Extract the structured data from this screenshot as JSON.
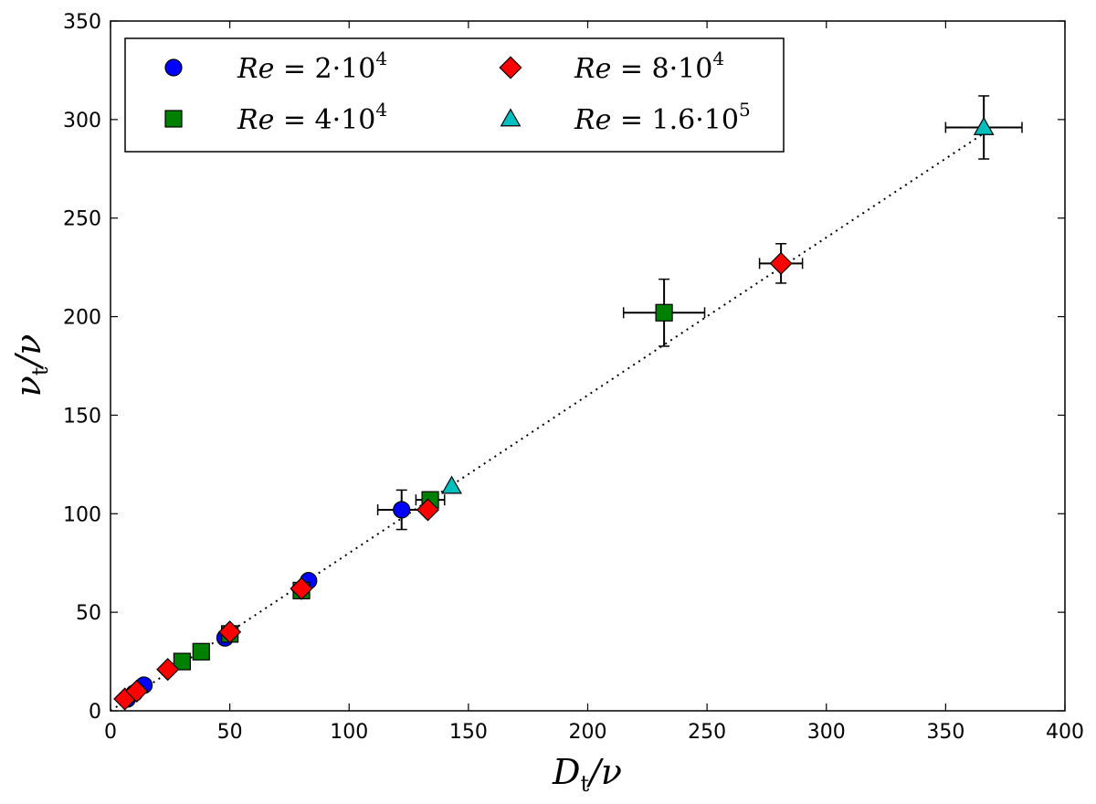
{
  "chart_data": {
    "type": "scatter",
    "title": "",
    "xlabel": "D_t/ν",
    "ylabel": "ν_t/ν",
    "xlim": [
      0,
      400
    ],
    "ylim": [
      0,
      350
    ],
    "xticks": [
      "0",
      "50",
      "100",
      "150",
      "200",
      "250",
      "300",
      "350",
      "400"
    ],
    "yticks": [
      "0",
      "50",
      "100",
      "150",
      "200",
      "250",
      "300",
      "350"
    ],
    "legend_position": "top-left",
    "fit_line": {
      "style": "dotted",
      "from": [
        0,
        0
      ],
      "to": [
        366,
        293
      ]
    },
    "series": [
      {
        "name": "Re = 2·10^4",
        "label_var": "Re",
        "label_eq": " = 2·10",
        "label_exp": "4",
        "marker": "circle",
        "color": "#0000ff",
        "points": [
          {
            "x": 7,
            "y": 6,
            "xerr": 0,
            "yerr": 0
          },
          {
            "x": 10,
            "y": 9,
            "xerr": 0,
            "yerr": 0
          },
          {
            "x": 14,
            "y": 13,
            "xerr": 0,
            "yerr": 0
          },
          {
            "x": 48,
            "y": 37,
            "xerr": 0,
            "yerr": 0
          },
          {
            "x": 83,
            "y": 66,
            "xerr": 0,
            "yerr": 0
          },
          {
            "x": 122,
            "y": 102,
            "xerr": 10,
            "yerr": 10
          }
        ]
      },
      {
        "name": "Re = 4·10^4",
        "label_var": "Re",
        "label_eq": " = 4·10",
        "label_exp": "4",
        "marker": "square",
        "color": "#008000",
        "points": [
          {
            "x": 30,
            "y": 25,
            "xerr": 2,
            "yerr": 2
          },
          {
            "x": 38,
            "y": 30,
            "xerr": 2,
            "yerr": 2
          },
          {
            "x": 50,
            "y": 39,
            "xerr": 0,
            "yerr": 0
          },
          {
            "x": 80,
            "y": 61,
            "xerr": 0,
            "yerr": 0
          },
          {
            "x": 134,
            "y": 107,
            "xerr": 6,
            "yerr": 4
          },
          {
            "x": 232,
            "y": 202,
            "xerr": 17,
            "yerr": 17
          }
        ]
      },
      {
        "name": "Re = 8·10^4",
        "label_var": "Re",
        "label_eq": " = 8·10",
        "label_exp": "4",
        "marker": "diamond",
        "color": "#ff0000",
        "points": [
          {
            "x": 6,
            "y": 6,
            "xerr": 1,
            "yerr": 2
          },
          {
            "x": 11,
            "y": 10,
            "xerr": 1,
            "yerr": 2
          },
          {
            "x": 24,
            "y": 21,
            "xerr": 1,
            "yerr": 2
          },
          {
            "x": 50,
            "y": 40,
            "xerr": 2,
            "yerr": 3
          },
          {
            "x": 80,
            "y": 62,
            "xerr": 2,
            "yerr": 3
          },
          {
            "x": 133,
            "y": 102,
            "xerr": 0,
            "yerr": 0
          },
          {
            "x": 281,
            "y": 227,
            "xerr": 9,
            "yerr": 10
          }
        ]
      },
      {
        "name": "Re = 1.6·10^5",
        "label_var": "Re",
        "label_eq": " = 1.6·10",
        "label_exp": "5",
        "marker": "triangle",
        "color": "#00bfbf",
        "points": [
          {
            "x": 143,
            "y": 114,
            "xerr": 0,
            "yerr": 0
          },
          {
            "x": 366,
            "y": 296,
            "xerr": 16,
            "yerr": 16
          }
        ]
      }
    ]
  }
}
